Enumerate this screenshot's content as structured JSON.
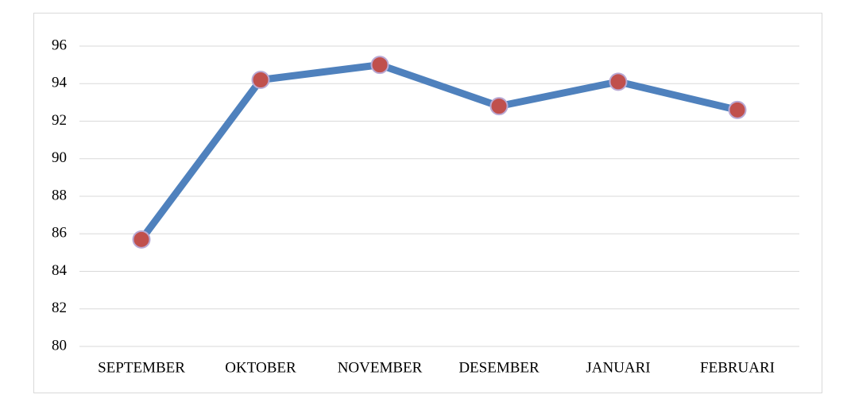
{
  "chart_data": {
    "type": "line",
    "categories": [
      "SEPTEMBER",
      "OKTOBER",
      "NOVEMBER",
      "DESEMBER",
      "JANUARI",
      "FEBRUARI"
    ],
    "values": [
      85.7,
      94.2,
      95.0,
      92.8,
      94.1,
      92.6
    ],
    "color": "#4f81bd",
    "marker_color": "#c0504d",
    "ylim": [
      80,
      96
    ],
    "yticks": [
      80,
      82,
      84,
      86,
      88,
      90,
      92,
      94,
      96
    ],
    "grid": true
  }
}
